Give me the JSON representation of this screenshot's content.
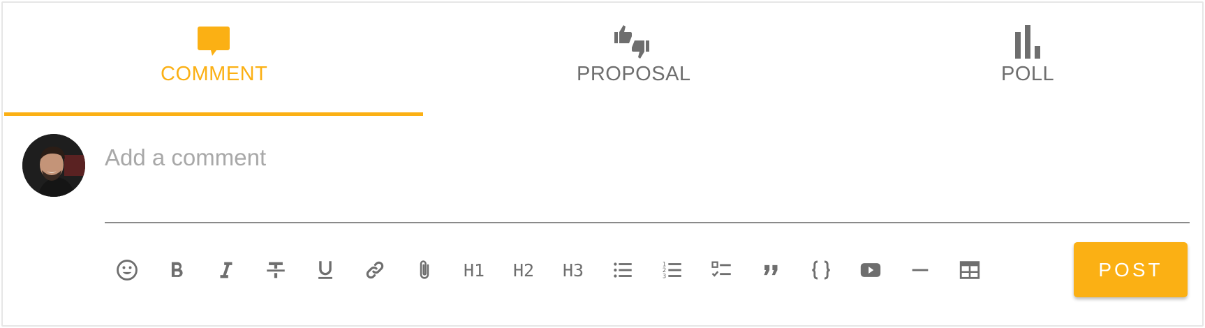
{
  "tabs": {
    "comment": {
      "label": "COMMENT",
      "icon": "comment-icon",
      "active": true
    },
    "proposal": {
      "label": "PROPOSAL",
      "icon": "thumbs-up-down-icon"
    },
    "poll": {
      "label": "POLL",
      "icon": "bar-chart-icon"
    }
  },
  "composer": {
    "placeholder": "Add a comment",
    "value": ""
  },
  "toolbar": {
    "h1_label": "H1",
    "h2_label": "H2",
    "h3_label": "H3",
    "items": [
      "emoji-icon",
      "bold-icon",
      "italic-icon",
      "strikethrough-icon",
      "underline-icon",
      "link-icon",
      "attachment-icon",
      "h1",
      "h2",
      "h3",
      "bullet-list-icon",
      "numbered-list-icon",
      "checklist-icon",
      "quote-icon",
      "code-block-icon",
      "video-icon",
      "horizontal-rule-icon",
      "table-icon"
    ]
  },
  "post_button": {
    "label": "POST"
  },
  "colors": {
    "accent": "#fbb014",
    "icon_gray": "#6e6e6e",
    "placeholder_gray": "#a8a8a8"
  }
}
